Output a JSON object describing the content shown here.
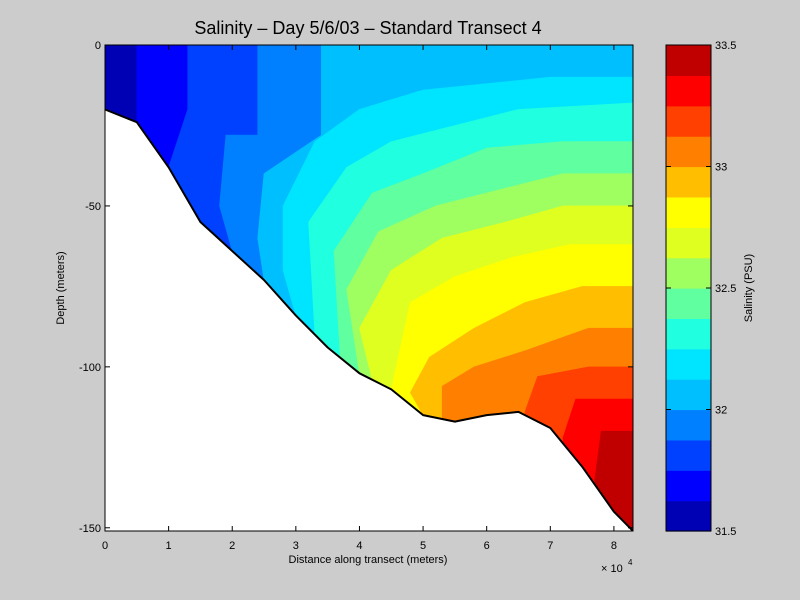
{
  "chart_data": {
    "type": "heatmap",
    "title": "Salinity – Day 5/6/03 – Standard Transect 4",
    "xlabel": "Distance along transect (meters)",
    "ylabel": "Depth (meters)",
    "x_exponent_label": "× 10",
    "x_exponent_power": "4",
    "xlim": [
      0,
      83000
    ],
    "ylim": [
      -151,
      0
    ],
    "x_ticks": [
      0,
      10000,
      20000,
      30000,
      40000,
      50000,
      60000,
      70000,
      80000
    ],
    "x_tick_labels": [
      "0",
      "1",
      "2",
      "3",
      "4",
      "5",
      "6",
      "7",
      "8"
    ],
    "y_ticks": [
      0,
      -50,
      -100,
      -150
    ],
    "y_tick_labels": [
      "0",
      "-50",
      "-100",
      "-150"
    ],
    "colorbar": {
      "label": "Salinity (PSU)",
      "range": [
        31.5,
        33.5
      ],
      "ticks": [
        31.5,
        32,
        32.5,
        33,
        33.5
      ],
      "tick_labels": [
        "31.5",
        "32",
        "32.5",
        "33",
        "33.5"
      ],
      "levels": [
        31.5,
        31.625,
        31.75,
        31.875,
        32,
        32.125,
        32.25,
        32.375,
        32.5,
        32.625,
        32.75,
        32.875,
        33,
        33.125,
        33.25,
        33.375,
        33.5
      ],
      "colors": [
        "#0000b4",
        "#0000ff",
        "#0040ff",
        "#0080ff",
        "#00bfff",
        "#00e5ff",
        "#20ffdf",
        "#60ffa0",
        "#a0ff60",
        "#dfff20",
        "#ffff00",
        "#ffbf00",
        "#ff8000",
        "#ff4000",
        "#ff0000",
        "#c00000"
      ]
    },
    "bottom_profile": [
      [
        0,
        -20
      ],
      [
        5000,
        -24
      ],
      [
        10000,
        -38
      ],
      [
        15000,
        -55
      ],
      [
        20000,
        -64
      ],
      [
        25000,
        -73
      ],
      [
        30000,
        -84
      ],
      [
        35000,
        -94
      ],
      [
        40000,
        -102
      ],
      [
        45000,
        -107
      ],
      [
        50000,
        -115
      ],
      [
        55000,
        -117
      ],
      [
        60000,
        -115
      ],
      [
        65000,
        -114
      ],
      [
        70000,
        -119
      ],
      [
        75000,
        -131
      ],
      [
        80000,
        -145
      ],
      [
        83000,
        -151
      ]
    ],
    "contours": [
      {
        "level": 31.625,
        "points": [
          [
            5000,
            0
          ],
          [
            5000,
            -24
          ]
        ]
      },
      {
        "level": 31.75,
        "points": [
          [
            13000,
            0
          ],
          [
            13000,
            -20
          ],
          [
            10000,
            -38
          ]
        ]
      },
      {
        "level": 31.875,
        "points": [
          [
            24000,
            0
          ],
          [
            24000,
            -28
          ],
          [
            19000,
            -28
          ],
          [
            18000,
            -50
          ],
          [
            20000,
            -64
          ]
        ]
      },
      {
        "level": 32,
        "points": [
          [
            34000,
            0
          ],
          [
            34000,
            -28
          ],
          [
            25000,
            -40
          ],
          [
            24000,
            -60
          ],
          [
            25000,
            -73
          ]
        ]
      },
      {
        "level": 32.125,
        "points": [
          [
            83000,
            -10
          ],
          [
            70000,
            -10
          ],
          [
            50000,
            -14
          ],
          [
            40000,
            -20
          ],
          [
            33000,
            -30
          ],
          [
            28000,
            -50
          ],
          [
            28000,
            -70
          ],
          [
            30000,
            -84
          ]
        ]
      },
      {
        "level": 32.25,
        "points": [
          [
            83000,
            -18
          ],
          [
            65000,
            -20
          ],
          [
            55000,
            -25
          ],
          [
            45000,
            -30
          ],
          [
            38000,
            -38
          ],
          [
            32000,
            -55
          ],
          [
            33000,
            -90
          ]
        ]
      },
      {
        "level": 32.375,
        "points": [
          [
            83000,
            -30
          ],
          [
            72000,
            -30
          ],
          [
            60000,
            -32
          ],
          [
            50000,
            -40
          ],
          [
            42000,
            -46
          ],
          [
            36000,
            -64
          ],
          [
            37000,
            -98
          ]
        ]
      },
      {
        "level": 32.5,
        "points": [
          [
            83000,
            -40
          ],
          [
            72000,
            -40
          ],
          [
            62000,
            -45
          ],
          [
            52000,
            -50
          ],
          [
            43000,
            -58
          ],
          [
            38000,
            -76
          ],
          [
            40000,
            -102
          ]
        ]
      },
      {
        "level": 32.625,
        "points": [
          [
            83000,
            -50
          ],
          [
            72000,
            -50
          ],
          [
            63000,
            -55
          ],
          [
            53000,
            -60
          ],
          [
            45000,
            -70
          ],
          [
            40000,
            -88
          ],
          [
            42000,
            -104
          ]
        ]
      },
      {
        "level": 32.75,
        "points": [
          [
            83000,
            -62
          ],
          [
            73000,
            -62
          ],
          [
            64000,
            -66
          ],
          [
            55000,
            -72
          ],
          [
            48000,
            -80
          ],
          [
            45000,
            -107
          ]
        ]
      },
      {
        "level": 32.875,
        "points": [
          [
            83000,
            -75
          ],
          [
            75000,
            -75
          ],
          [
            66000,
            -80
          ],
          [
            58000,
            -88
          ],
          [
            51000,
            -97
          ],
          [
            48000,
            -108
          ],
          [
            50000,
            -115
          ]
        ]
      },
      {
        "level": 33,
        "points": [
          [
            83000,
            -88
          ],
          [
            76000,
            -88
          ],
          [
            66000,
            -95
          ],
          [
            58000,
            -100
          ],
          [
            53000,
            -106
          ],
          [
            53000,
            -116
          ]
        ]
      },
      {
        "level": 33.125,
        "points": [
          [
            83000,
            -100
          ],
          [
            76000,
            -100
          ],
          [
            68000,
            -103
          ],
          [
            66000,
            -114
          ]
        ]
      },
      {
        "level": 33.25,
        "points": [
          [
            83000,
            -110
          ],
          [
            74000,
            -110
          ],
          [
            72000,
            -122
          ]
        ]
      },
      {
        "level": 33.375,
        "points": [
          [
            83000,
            -120
          ],
          [
            78000,
            -120
          ],
          [
            77000,
            -135
          ]
        ]
      }
    ]
  }
}
